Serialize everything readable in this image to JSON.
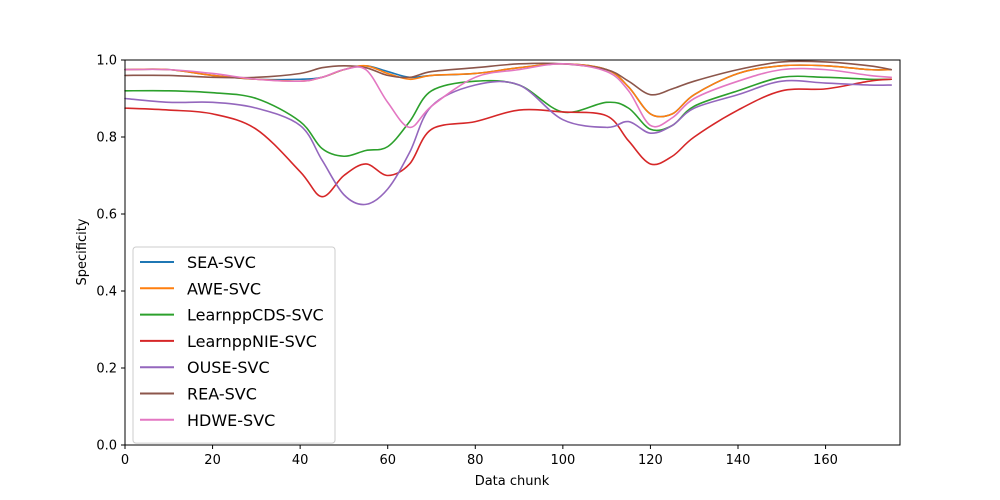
{
  "chart_data": {
    "type": "line",
    "xlabel": "Data chunk",
    "ylabel": "Specificity",
    "xlim": [
      0,
      177
    ],
    "ylim": [
      0.0,
      1.0
    ],
    "xticks": [
      0,
      20,
      40,
      60,
      80,
      100,
      120,
      140,
      160
    ],
    "yticks": [
      0.0,
      0.2,
      0.4,
      0.6,
      0.8,
      1.0
    ],
    "ytick_labels": [
      "0.0",
      "0.2",
      "0.4",
      "0.6",
      "0.8",
      "1.0"
    ],
    "grid": false,
    "legend_position": "lower-left",
    "x": [
      0,
      10,
      20,
      30,
      40,
      45,
      50,
      55,
      60,
      65,
      70,
      80,
      90,
      100,
      110,
      115,
      120,
      125,
      130,
      140,
      150,
      160,
      170,
      175
    ],
    "series": [
      {
        "name": "SEA-SVC",
        "color": "#1f77b4",
        "values": [
          0.975,
          0.975,
          0.96,
          0.95,
          0.95,
          0.955,
          0.975,
          0.985,
          0.97,
          0.955,
          0.96,
          0.965,
          0.98,
          0.99,
          0.975,
          0.93,
          0.86,
          0.86,
          0.91,
          0.965,
          0.985,
          0.985,
          0.975,
          0.975
        ]
      },
      {
        "name": "AWE-SVC",
        "color": "#ff7f0e",
        "values": [
          0.975,
          0.975,
          0.96,
          0.95,
          0.945,
          0.955,
          0.975,
          0.985,
          0.965,
          0.95,
          0.96,
          0.965,
          0.98,
          0.99,
          0.975,
          0.93,
          0.86,
          0.86,
          0.91,
          0.965,
          0.985,
          0.985,
          0.975,
          0.975
        ]
      },
      {
        "name": "LearnppCDS-SVC",
        "color": "#2ca02c",
        "values": [
          0.92,
          0.92,
          0.915,
          0.9,
          0.84,
          0.77,
          0.75,
          0.765,
          0.775,
          0.84,
          0.92,
          0.945,
          0.935,
          0.865,
          0.89,
          0.875,
          0.82,
          0.83,
          0.88,
          0.92,
          0.955,
          0.955,
          0.95,
          0.95
        ]
      },
      {
        "name": "LearnppNIE-SVC",
        "color": "#d62728",
        "values": [
          0.875,
          0.87,
          0.86,
          0.82,
          0.71,
          0.645,
          0.7,
          0.73,
          0.7,
          0.73,
          0.82,
          0.84,
          0.87,
          0.865,
          0.855,
          0.79,
          0.73,
          0.75,
          0.8,
          0.87,
          0.92,
          0.925,
          0.945,
          0.95
        ]
      },
      {
        "name": "OUSE-SVC",
        "color": "#9467bd",
        "values": [
          0.9,
          0.89,
          0.89,
          0.875,
          0.83,
          0.74,
          0.65,
          0.625,
          0.665,
          0.76,
          0.88,
          0.935,
          0.935,
          0.845,
          0.825,
          0.84,
          0.81,
          0.83,
          0.875,
          0.91,
          0.945,
          0.94,
          0.935,
          0.935
        ]
      },
      {
        "name": "REA-SVC",
        "color": "#8c564b",
        "values": [
          0.96,
          0.96,
          0.955,
          0.955,
          0.965,
          0.98,
          0.985,
          0.98,
          0.96,
          0.955,
          0.97,
          0.98,
          0.99,
          0.99,
          0.975,
          0.945,
          0.91,
          0.925,
          0.945,
          0.975,
          0.995,
          0.995,
          0.985,
          0.975
        ]
      },
      {
        "name": "HDWE-SVC",
        "color": "#e377c2",
        "values": [
          0.975,
          0.975,
          0.965,
          0.95,
          0.945,
          0.955,
          0.975,
          0.975,
          0.89,
          0.825,
          0.88,
          0.955,
          0.975,
          0.99,
          0.97,
          0.92,
          0.83,
          0.85,
          0.9,
          0.945,
          0.975,
          0.975,
          0.96,
          0.955
        ]
      }
    ]
  }
}
